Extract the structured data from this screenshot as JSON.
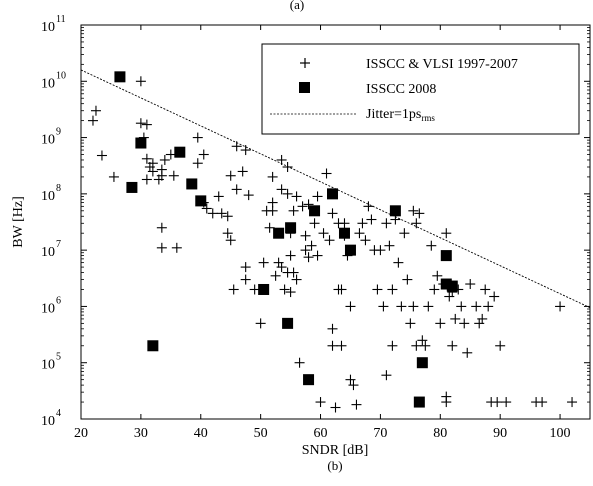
{
  "caption_top": "(a)",
  "caption_bottom": "(b)",
  "chart_data": {
    "type": "scatter",
    "xlabel": "SNDR [dB]",
    "ylabel": "BW [Hz]",
    "xlim": [
      20,
      105
    ],
    "ylim": [
      10000,
      100000000000
    ],
    "yscale": "log",
    "xticks": [
      "20",
      "30",
      "40",
      "50",
      "60",
      "70",
      "80",
      "90",
      "100"
    ],
    "yticks": [
      {
        "base": "10",
        "exp": "4"
      },
      {
        "base": "10",
        "exp": "5"
      },
      {
        "base": "10",
        "exp": "6"
      },
      {
        "base": "10",
        "exp": "7"
      },
      {
        "base": "10",
        "exp": "8"
      },
      {
        "base": "10",
        "exp": "9"
      },
      {
        "base": "10",
        "exp": "10"
      },
      {
        "base": "10",
        "exp": "11"
      }
    ],
    "grid": false,
    "legend_position": "top-right",
    "series": [
      {
        "name": "ISSCC & VLSI 1997-2007",
        "marker": "plus",
        "color": "#000000",
        "points": [
          [
            22,
            2000000000
          ],
          [
            22.5,
            3000000000
          ],
          [
            23.5,
            480000000
          ],
          [
            25.5,
            200000000
          ],
          [
            30,
            10000000000
          ],
          [
            30,
            1800000000
          ],
          [
            31,
            1700000000
          ],
          [
            30.5,
            1000000000
          ],
          [
            31,
            420000000
          ],
          [
            31.5,
            300000000
          ],
          [
            31,
            180000000
          ],
          [
            32,
            350000000
          ],
          [
            32,
            250000000
          ],
          [
            33,
            180000000
          ],
          [
            33.5,
            210000000
          ],
          [
            33.5,
            270000000
          ],
          [
            34,
            400000000
          ],
          [
            33.5,
            25000000
          ],
          [
            33.5,
            11000000
          ],
          [
            35,
            500000000
          ],
          [
            35.5,
            210000000
          ],
          [
            36,
            11000000
          ],
          [
            39.5,
            1000000000
          ],
          [
            39.5,
            350000000
          ],
          [
            40.5,
            500000000
          ],
          [
            40.5,
            70000000
          ],
          [
            41,
            55000000
          ],
          [
            42,
            45000000
          ],
          [
            43,
            90000000
          ],
          [
            43.5,
            45000000
          ],
          [
            44.5,
            40000000
          ],
          [
            44.5,
            20000000
          ],
          [
            45,
            15000000
          ],
          [
            45,
            210000000
          ],
          [
            45.5,
            2000000
          ],
          [
            46,
            120000000
          ],
          [
            46,
            700000000
          ],
          [
            47,
            250000000
          ],
          [
            47.5,
            5000000
          ],
          [
            47.5,
            3000000
          ],
          [
            47.5,
            600000000
          ],
          [
            48,
            95000000
          ],
          [
            49,
            2000000
          ],
          [
            50,
            500000
          ],
          [
            50.5,
            6000000
          ],
          [
            51,
            50000000
          ],
          [
            51.5,
            25000000
          ],
          [
            52,
            50000000
          ],
          [
            52,
            70000000
          ],
          [
            52,
            200000000
          ],
          [
            52.5,
            3500000
          ],
          [
            53,
            6000000
          ],
          [
            53.5,
            400000000
          ],
          [
            53.5,
            5000000
          ],
          [
            53.5,
            120000000
          ],
          [
            54,
            2000000
          ],
          [
            54.5,
            100000000
          ],
          [
            54.5,
            300000000
          ],
          [
            54.5,
            4000000
          ],
          [
            55,
            1800000
          ],
          [
            55,
            8000000
          ],
          [
            55,
            20000000
          ],
          [
            55.5,
            50000000
          ],
          [
            55.5,
            4000000
          ],
          [
            56,
            90000000
          ],
          [
            56,
            3000000
          ],
          [
            56.5,
            100000
          ],
          [
            57,
            60000000
          ],
          [
            57.5,
            10000000
          ],
          [
            57.5,
            18000000
          ],
          [
            58,
            65000000
          ],
          [
            58,
            7500000
          ],
          [
            58.5,
            12000000
          ],
          [
            59,
            30000000
          ],
          [
            59.5,
            90000000
          ],
          [
            59.5,
            8000000
          ],
          [
            60,
            20000
          ],
          [
            60.5,
            20000000
          ],
          [
            61,
            230000000
          ],
          [
            61.5,
            15000000
          ],
          [
            62,
            400000
          ],
          [
            62,
            200000
          ],
          [
            62,
            45000000
          ],
          [
            62.5,
            16000
          ],
          [
            63,
            30000000
          ],
          [
            63,
            2000000
          ],
          [
            63.5,
            200000
          ],
          [
            63.5,
            2000000
          ],
          [
            64,
            18000000
          ],
          [
            64,
            30000000
          ],
          [
            64.5,
            8000000
          ],
          [
            65,
            50000
          ],
          [
            65,
            1000000
          ],
          [
            65.5,
            40000
          ],
          [
            66,
            18000
          ],
          [
            66.5,
            20000000
          ],
          [
            67,
            30000000
          ],
          [
            67.5,
            15000000
          ],
          [
            68,
            60000000
          ],
          [
            68.5,
            35000000
          ],
          [
            69,
            10000000
          ],
          [
            69.5,
            2000000
          ],
          [
            70,
            10000000
          ],
          [
            70.5,
            1000000
          ],
          [
            71,
            30000000
          ],
          [
            71,
            60000
          ],
          [
            71.5,
            12000000
          ],
          [
            72,
            200000
          ],
          [
            72,
            2000000
          ],
          [
            72.5,
            35000000
          ],
          [
            73,
            6000000
          ],
          [
            73.5,
            1000000
          ],
          [
            74,
            20000000
          ],
          [
            74.5,
            3000000
          ],
          [
            75,
            500000
          ],
          [
            75.5,
            50000000
          ],
          [
            75.5,
            1000000
          ],
          [
            76,
            200000
          ],
          [
            76,
            30000000
          ],
          [
            76.5,
            45000000
          ],
          [
            77,
            250000
          ],
          [
            77.5,
            200000
          ],
          [
            78,
            1000000
          ],
          [
            78.5,
            12000000
          ],
          [
            79,
            2000000
          ],
          [
            79.5,
            3500000
          ],
          [
            80,
            500000
          ],
          [
            80.5,
            2500000
          ],
          [
            81,
            20000000
          ],
          [
            81,
            25000
          ],
          [
            81,
            20000
          ],
          [
            81.5,
            1500000
          ],
          [
            82,
            1800000
          ],
          [
            82,
            200000
          ],
          [
            82.5,
            600000
          ],
          [
            83,
            2000000
          ],
          [
            83.5,
            1000000
          ],
          [
            84,
            500000
          ],
          [
            84.5,
            150000
          ],
          [
            85,
            2500000
          ],
          [
            86,
            1000000
          ],
          [
            86.5,
            500000
          ],
          [
            87,
            600000
          ],
          [
            87.5,
            2000000
          ],
          [
            88,
            1000000
          ],
          [
            88.5,
            20000
          ],
          [
            89,
            1500000
          ],
          [
            89.5,
            20000
          ],
          [
            90,
            200000
          ],
          [
            91,
            20000
          ],
          [
            96,
            20000
          ],
          [
            97,
            20000
          ],
          [
            100,
            1000000
          ],
          [
            102,
            20000
          ]
        ]
      },
      {
        "name": "ISSCC 2008",
        "marker": "square",
        "color": "#000000",
        "points": [
          [
            26.5,
            12000000000
          ],
          [
            28.5,
            130000000
          ],
          [
            30,
            800000000
          ],
          [
            32,
            200000
          ],
          [
            36.5,
            550000000
          ],
          [
            38.5,
            150000000
          ],
          [
            40,
            75000000
          ],
          [
            50.5,
            2000000
          ],
          [
            53,
            20000000
          ],
          [
            54.5,
            500000
          ],
          [
            55,
            25000000
          ],
          [
            58,
            50000
          ],
          [
            59,
            50000000
          ],
          [
            62,
            100000000
          ],
          [
            64,
            20000000
          ],
          [
            65,
            10000000
          ],
          [
            72.5,
            50000000
          ],
          [
            76.5,
            20000
          ],
          [
            77,
            100000
          ],
          [
            81,
            8000000
          ],
          [
            81,
            2500000
          ],
          [
            82,
            2300000
          ]
        ]
      },
      {
        "name": "Jitter=1ps",
        "name_subscript": "rms",
        "marker": "dashed-line",
        "color": "#000000",
        "points": [
          [
            20,
            15900000000
          ],
          [
            105,
            950000
          ]
        ]
      }
    ]
  }
}
